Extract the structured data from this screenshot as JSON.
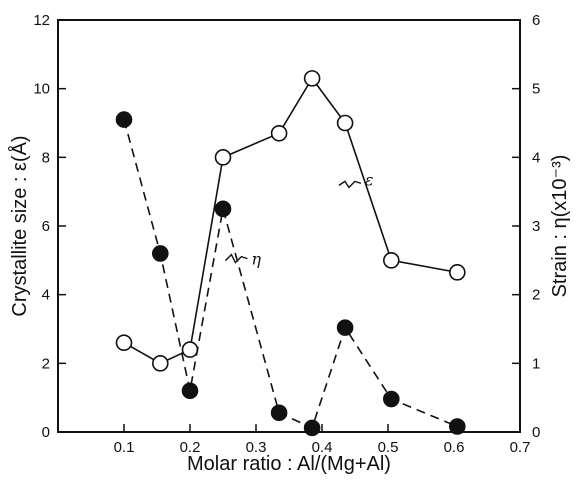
{
  "chart_data": {
    "type": "line",
    "xlabel": "Molar ratio : Al/(Mg+Al)",
    "ylabel_left": "Crystallite size : ε(Å)",
    "ylabel_right": "Strain : η(x10⁻³)",
    "xlim": [
      0.0,
      0.7
    ],
    "ylim_left": [
      0,
      12
    ],
    "ylim_right": [
      0,
      6
    ],
    "x_ticks": [
      "0.1",
      "0.2",
      "0.3",
      "0.4",
      "0.5",
      "0.6",
      "0.7"
    ],
    "y_left_ticks": [
      "0",
      "2",
      "4",
      "6",
      "8",
      "10",
      "12"
    ],
    "y_right_ticks": [
      "0",
      "1",
      "2",
      "3",
      "4",
      "5",
      "6"
    ],
    "grid": false,
    "series": [
      {
        "name": "ε",
        "axis": "left",
        "marker": "open-circle",
        "line": "solid",
        "color": "#111111",
        "x": [
          0.1,
          0.155,
          0.2,
          0.25,
          0.335,
          0.385,
          0.435,
          0.505,
          0.605
        ],
        "y": [
          2.6,
          2.0,
          2.4,
          8.0,
          8.7,
          10.3,
          9.0,
          5.0,
          4.65
        ]
      },
      {
        "name": "η",
        "axis": "right",
        "marker": "filled-circle",
        "line": "dashed",
        "color": "#111111",
        "x": [
          0.1,
          0.155,
          0.2,
          0.25,
          0.335,
          0.385,
          0.435,
          0.505,
          0.605
        ],
        "y": [
          4.55,
          2.6,
          0.6,
          3.25,
          0.28,
          0.06,
          1.52,
          0.48,
          0.08
        ]
      }
    ],
    "annotations": [
      {
        "text": "ε",
        "series": "ε"
      },
      {
        "text": "η",
        "series": "η"
      }
    ]
  }
}
